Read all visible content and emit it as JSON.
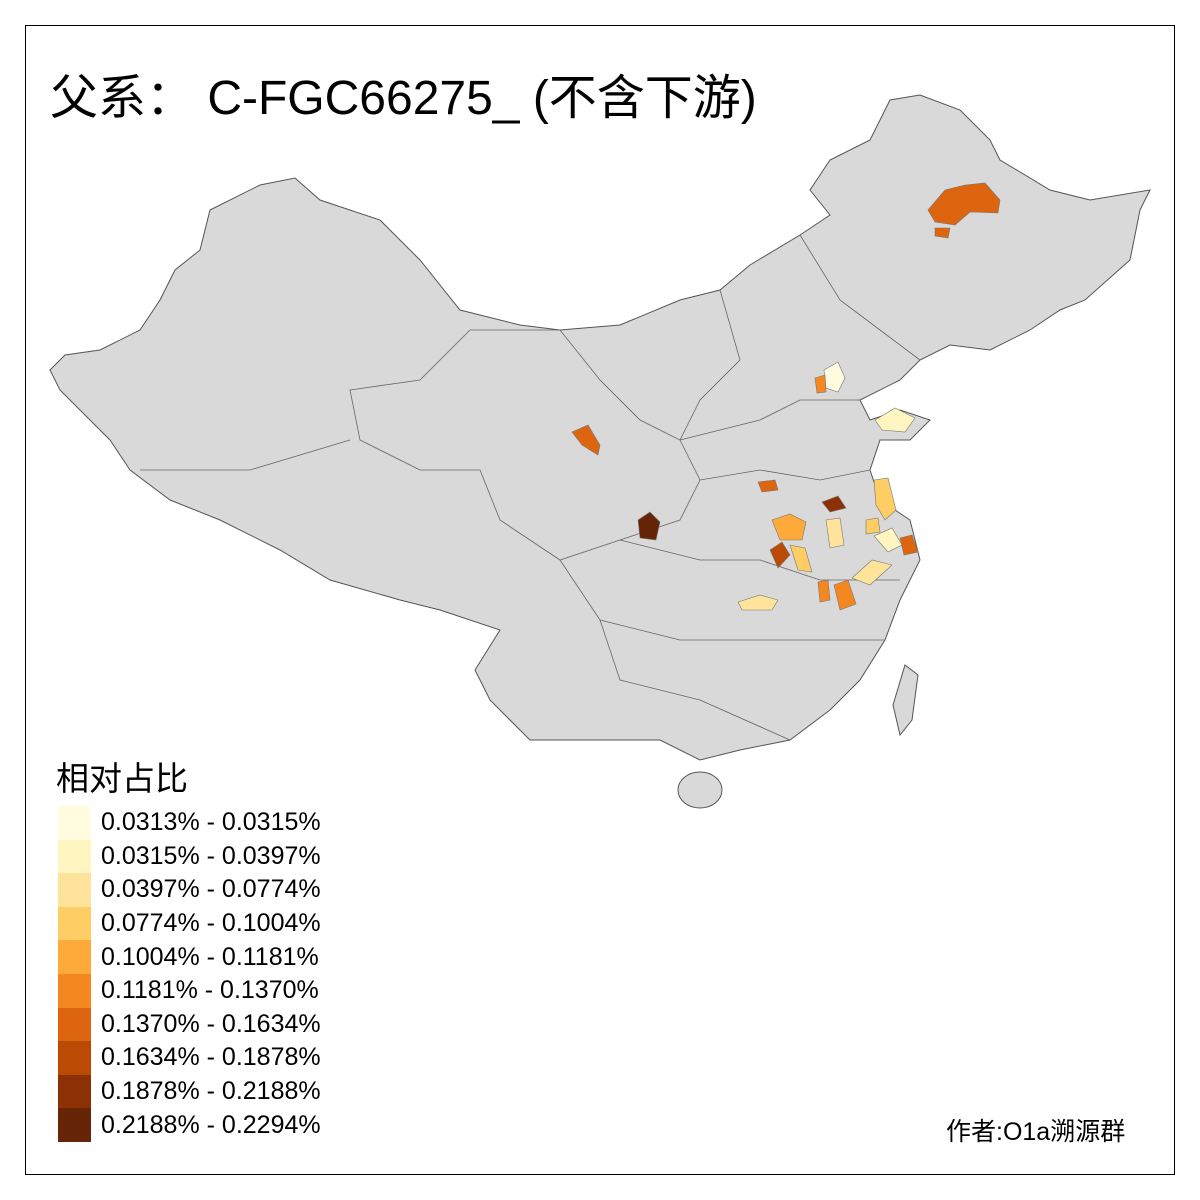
{
  "title": "父系： C-FGC66275_ (不含下游)",
  "legend": {
    "title": "相对占比",
    "items": [
      {
        "label": "0.0313% - 0.0315%",
        "color": "#FFFCE0"
      },
      {
        "label": "0.0315% - 0.0397%",
        "color": "#FFF5C0"
      },
      {
        "label": "0.0397% - 0.0774%",
        "color": "#FEE49A"
      },
      {
        "label": "0.0774% - 0.1004%",
        "color": "#FECE65"
      },
      {
        "label": "0.1004% - 0.1181%",
        "color": "#FEAA3A"
      },
      {
        "label": "0.1181% - 0.1370%",
        "color": "#F4871F"
      },
      {
        "label": "0.1370% - 0.1634%",
        "color": "#DE6510"
      },
      {
        "label": "0.1634% - 0.1878%",
        "color": "#BB4A05"
      },
      {
        "label": "0.1878% - 0.2188%",
        "color": "#8C3005"
      },
      {
        "label": "0.2188% - 0.2294%",
        "color": "#662506"
      }
    ]
  },
  "author": "作者:O1a溯源群",
  "colors": {
    "base_land": "#D9D9D9",
    "border": "#555555",
    "no_data": "#D9D9D9"
  }
}
